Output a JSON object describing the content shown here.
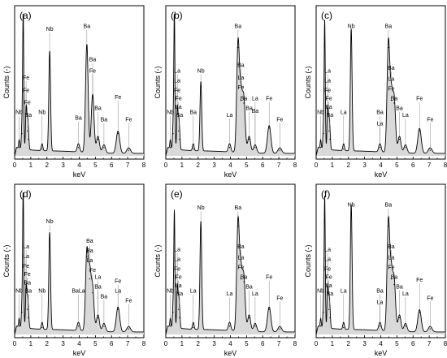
{
  "chart_data": [
    {
      "type": "area",
      "panel_label": "(a)",
      "xlabel": "keV",
      "ylabel": "Counts (-)",
      "xlim": [
        0,
        8
      ],
      "x_ticks": [
        "0",
        "1",
        "2",
        "3",
        "4",
        "5",
        "6",
        "7",
        "8"
      ],
      "peaks": [
        {
          "x": 0.28,
          "y": 0.06
        },
        {
          "x": 0.45,
          "y": 0.16
        },
        {
          "x": 0.53,
          "y": 1.0
        },
        {
          "x": 0.71,
          "y": 0.3
        },
        {
          "x": 0.79,
          "y": 0.18
        },
        {
          "x": 0.85,
          "y": 0.12
        },
        {
          "x": 1.7,
          "y": 0.05
        },
        {
          "x": 2.17,
          "y": 0.72
        },
        {
          "x": 3.95,
          "y": 0.06
        },
        {
          "x": 4.47,
          "y": 0.78
        },
        {
          "x": 4.83,
          "y": 0.42
        },
        {
          "x": 5.16,
          "y": 0.12
        },
        {
          "x": 5.53,
          "y": 0.06
        },
        {
          "x": 6.4,
          "y": 0.16
        },
        {
          "x": 7.06,
          "y": 0.04
        }
      ],
      "labels": [
        {
          "text": "Nb",
          "x": 2.17,
          "level": 0.9
        },
        {
          "text": "Ba",
          "x": 4.47,
          "level": 0.92
        },
        {
          "text": "Fe",
          "x": 0.71,
          "level": 0.55
        },
        {
          "text": "Fe",
          "x": 0.71,
          "level": 0.46
        },
        {
          "text": "Fe",
          "x": 0.79,
          "level": 0.37
        },
        {
          "text": "Ba",
          "x": 0.85,
          "level": 0.28
        },
        {
          "text": "Nb",
          "x": 0.28,
          "level": 0.3
        },
        {
          "text": "Nb",
          "x": 1.7,
          "level": 0.3
        },
        {
          "text": "Ba",
          "x": 3.95,
          "level": 0.26
        },
        {
          "text": "Ba",
          "x": 4.83,
          "level": 0.68
        },
        {
          "text": "Fe",
          "x": 4.83,
          "level": 0.6
        },
        {
          "text": "Ba",
          "x": 5.16,
          "level": 0.33
        },
        {
          "text": "Ba",
          "x": 5.53,
          "level": 0.25
        },
        {
          "text": "Fe",
          "x": 6.4,
          "level": 0.41
        },
        {
          "text": "Fe",
          "x": 7.06,
          "level": 0.25
        }
      ]
    },
    {
      "type": "area",
      "panel_label": "(b)",
      "xlabel": "keV",
      "ylabel": "Counts (-)",
      "xlim": [
        0,
        8
      ],
      "x_ticks": [
        "0",
        "1",
        "2",
        "3",
        "4",
        "5",
        "6",
        "7",
        "8"
      ],
      "peaks": [
        {
          "x": 0.28,
          "y": 0.06
        },
        {
          "x": 0.45,
          "y": 0.16
        },
        {
          "x": 0.53,
          "y": 1.0
        },
        {
          "x": 0.71,
          "y": 0.3
        },
        {
          "x": 0.79,
          "y": 0.18
        },
        {
          "x": 0.85,
          "y": 0.12
        },
        {
          "x": 1.7,
          "y": 0.05
        },
        {
          "x": 2.17,
          "y": 0.5
        },
        {
          "x": 3.95,
          "y": 0.06
        },
        {
          "x": 4.47,
          "y": 0.78
        },
        {
          "x": 4.65,
          "y": 0.4
        },
        {
          "x": 4.83,
          "y": 0.38
        },
        {
          "x": 5.16,
          "y": 0.12
        },
        {
          "x": 5.53,
          "y": 0.06
        },
        {
          "x": 6.4,
          "y": 0.2
        },
        {
          "x": 7.06,
          "y": 0.04
        }
      ],
      "labels": [
        {
          "text": "Ba",
          "x": 4.47,
          "level": 0.92
        },
        {
          "text": "Ba",
          "x": 4.65,
          "level": 0.64
        },
        {
          "text": "Nb",
          "x": 2.17,
          "level": 0.6
        },
        {
          "text": "La",
          "x": 0.71,
          "level": 0.6
        },
        {
          "text": "La",
          "x": 0.71,
          "level": 0.53
        },
        {
          "text": "Fe",
          "x": 0.71,
          "level": 0.46
        },
        {
          "text": "Fe",
          "x": 0.79,
          "level": 0.4
        },
        {
          "text": "La",
          "x": 0.79,
          "level": 0.34
        },
        {
          "text": "Ba",
          "x": 0.85,
          "level": 0.28
        },
        {
          "text": "Nb",
          "x": 0.28,
          "level": 0.3
        },
        {
          "text": "Ba",
          "x": 1.7,
          "level": 0.3
        },
        {
          "text": "La",
          "x": 3.95,
          "level": 0.28
        },
        {
          "text": "La",
          "x": 4.65,
          "level": 0.55
        },
        {
          "text": "Fe",
          "x": 4.65,
          "level": 0.48
        },
        {
          "text": "Ba",
          "x": 4.83,
          "level": 0.4
        },
        {
          "text": "Ba",
          "x": 5.16,
          "level": 0.33
        },
        {
          "text": "La",
          "x": 5.53,
          "level": 0.4
        },
        {
          "text": "Ba",
          "x": 5.53,
          "level": 0.31
        },
        {
          "text": "Fe",
          "x": 6.4,
          "level": 0.4
        },
        {
          "text": "Fe",
          "x": 7.06,
          "level": 0.25
        }
      ]
    },
    {
      "type": "area",
      "panel_label": "(c)",
      "xlabel": "keV",
      "ylabel": "Counts (-)",
      "xlim": [
        0,
        8
      ],
      "x_ticks": [
        "0",
        "1",
        "2",
        "3",
        "4",
        "5",
        "6",
        "7",
        "8"
      ],
      "peaks": [
        {
          "x": 0.28,
          "y": 0.06
        },
        {
          "x": 0.45,
          "y": 0.16
        },
        {
          "x": 0.53,
          "y": 0.92
        },
        {
          "x": 0.71,
          "y": 0.3
        },
        {
          "x": 0.79,
          "y": 0.18
        },
        {
          "x": 0.85,
          "y": 0.12
        },
        {
          "x": 1.7,
          "y": 0.05
        },
        {
          "x": 2.17,
          "y": 0.88
        },
        {
          "x": 3.95,
          "y": 0.06
        },
        {
          "x": 4.47,
          "y": 0.78
        },
        {
          "x": 4.65,
          "y": 0.4
        },
        {
          "x": 4.83,
          "y": 0.38
        },
        {
          "x": 5.16,
          "y": 0.12
        },
        {
          "x": 5.53,
          "y": 0.06
        },
        {
          "x": 6.4,
          "y": 0.18
        },
        {
          "x": 7.06,
          "y": 0.04
        }
      ],
      "labels": [
        {
          "text": "Nb",
          "x": 2.17,
          "level": 0.92
        },
        {
          "text": "Ba",
          "x": 4.47,
          "level": 0.92
        },
        {
          "text": "Ba",
          "x": 4.65,
          "level": 0.62
        },
        {
          "text": "La",
          "x": 0.71,
          "level": 0.6
        },
        {
          "text": "La",
          "x": 0.71,
          "level": 0.53
        },
        {
          "text": "Fe",
          "x": 0.71,
          "level": 0.46
        },
        {
          "text": "Fe",
          "x": 0.79,
          "level": 0.4
        },
        {
          "text": "La",
          "x": 0.79,
          "level": 0.34
        },
        {
          "text": "Ba",
          "x": 0.85,
          "level": 0.28
        },
        {
          "text": "Nb",
          "x": 0.28,
          "level": 0.3
        },
        {
          "text": "La",
          "x": 1.7,
          "level": 0.3
        },
        {
          "text": "Ba",
          "x": 3.95,
          "level": 0.3
        },
        {
          "text": "La",
          "x": 3.95,
          "level": 0.22
        },
        {
          "text": "La",
          "x": 4.65,
          "level": 0.54
        },
        {
          "text": "Fe",
          "x": 4.65,
          "level": 0.47
        },
        {
          "text": "Ba",
          "x": 4.83,
          "level": 0.4
        },
        {
          "text": "Ba",
          "x": 5.16,
          "level": 0.33
        },
        {
          "text": "La",
          "x": 5.53,
          "level": 0.28
        },
        {
          "text": "Fe",
          "x": 6.4,
          "level": 0.4
        },
        {
          "text": "Fe",
          "x": 7.06,
          "level": 0.25
        }
      ]
    },
    {
      "type": "area",
      "panel_label": "(d)",
      "xlabel": "keV",
      "ylabel": "Counts (-)",
      "xlim": [
        0,
        8
      ],
      "x_ticks": [
        "0",
        "1",
        "2",
        "3",
        "4",
        "5",
        "6",
        "7",
        "8"
      ],
      "peaks": [
        {
          "x": 0.28,
          "y": 0.06
        },
        {
          "x": 0.45,
          "y": 0.16
        },
        {
          "x": 0.53,
          "y": 1.0
        },
        {
          "x": 0.71,
          "y": 0.3
        },
        {
          "x": 0.79,
          "y": 0.18
        },
        {
          "x": 0.85,
          "y": 0.12
        },
        {
          "x": 1.7,
          "y": 0.05
        },
        {
          "x": 2.17,
          "y": 0.7
        },
        {
          "x": 3.95,
          "y": 0.06
        },
        {
          "x": 4.47,
          "y": 0.56
        },
        {
          "x": 4.65,
          "y": 0.4
        },
        {
          "x": 4.83,
          "y": 0.3
        },
        {
          "x": 5.16,
          "y": 0.12
        },
        {
          "x": 5.53,
          "y": 0.06
        },
        {
          "x": 6.4,
          "y": 0.18
        },
        {
          "x": 7.06,
          "y": 0.04
        }
      ],
      "labels": [
        {
          "text": "Nb",
          "x": 2.17,
          "level": 0.8
        },
        {
          "text": "La",
          "x": 0.71,
          "level": 0.62
        },
        {
          "text": "La",
          "x": 0.71,
          "level": 0.55
        },
        {
          "text": "Fe",
          "x": 0.71,
          "level": 0.48
        },
        {
          "text": "Fe",
          "x": 0.79,
          "level": 0.42
        },
        {
          "text": "Ba",
          "x": 0.79,
          "level": 0.36
        },
        {
          "text": "Ba",
          "x": 0.85,
          "level": 0.3
        },
        {
          "text": "Nb",
          "x": 0.28,
          "level": 0.3
        },
        {
          "text": "Nb",
          "x": 1.7,
          "level": 0.3
        },
        {
          "text": "BaLa",
          "x": 3.95,
          "level": 0.3
        },
        {
          "text": "Ba",
          "x": 4.65,
          "level": 0.66
        },
        {
          "text": "Ba",
          "x": 4.65,
          "level": 0.59
        },
        {
          "text": "La",
          "x": 4.65,
          "level": 0.52
        },
        {
          "text": "Fe",
          "x": 4.83,
          "level": 0.45
        },
        {
          "text": "La",
          "x": 5.16,
          "level": 0.4
        },
        {
          "text": "Ba",
          "x": 5.16,
          "level": 0.33
        },
        {
          "text": "Ba",
          "x": 5.53,
          "level": 0.26
        },
        {
          "text": "Fe",
          "x": 6.4,
          "level": 0.37
        },
        {
          "text": "La",
          "x": 6.4,
          "level": 0.3
        },
        {
          "text": "Fe",
          "x": 7.06,
          "level": 0.23
        }
      ]
    },
    {
      "type": "area",
      "panel_label": "(e)",
      "xlabel": "keV",
      "ylabel": "Counts (-)",
      "xlim": [
        0,
        8
      ],
      "x_ticks": [
        "0",
        "1",
        "2",
        "3",
        "4",
        "5",
        "6",
        "7",
        "8"
      ],
      "peaks": [
        {
          "x": 0.28,
          "y": 0.06
        },
        {
          "x": 0.45,
          "y": 0.16
        },
        {
          "x": 0.53,
          "y": 0.84
        },
        {
          "x": 0.71,
          "y": 0.3
        },
        {
          "x": 0.79,
          "y": 0.18
        },
        {
          "x": 0.85,
          "y": 0.12
        },
        {
          "x": 1.7,
          "y": 0.05
        },
        {
          "x": 2.17,
          "y": 0.78
        },
        {
          "x": 3.95,
          "y": 0.06
        },
        {
          "x": 4.47,
          "y": 0.78
        },
        {
          "x": 4.65,
          "y": 0.4
        },
        {
          "x": 4.83,
          "y": 0.38
        },
        {
          "x": 5.16,
          "y": 0.12
        },
        {
          "x": 5.53,
          "y": 0.06
        },
        {
          "x": 6.4,
          "y": 0.18
        },
        {
          "x": 7.06,
          "y": 0.04
        }
      ],
      "labels": [
        {
          "text": "Nb",
          "x": 2.17,
          "level": 0.9
        },
        {
          "text": "Ba",
          "x": 4.47,
          "level": 0.9
        },
        {
          "text": "Ba",
          "x": 4.65,
          "level": 0.62
        },
        {
          "text": "La",
          "x": 0.71,
          "level": 0.6
        },
        {
          "text": "La",
          "x": 0.71,
          "level": 0.53
        },
        {
          "text": "Fe",
          "x": 0.71,
          "level": 0.46
        },
        {
          "text": "Fe",
          "x": 0.79,
          "level": 0.4
        },
        {
          "text": "La",
          "x": 0.79,
          "level": 0.34
        },
        {
          "text": "Ba",
          "x": 0.85,
          "level": 0.28
        },
        {
          "text": "Nb",
          "x": 0.28,
          "level": 0.3
        },
        {
          "text": "La",
          "x": 1.7,
          "level": 0.3
        },
        {
          "text": "La",
          "x": 3.95,
          "level": 0.28
        },
        {
          "text": "La",
          "x": 4.65,
          "level": 0.54
        },
        {
          "text": "Fe",
          "x": 4.65,
          "level": 0.47
        },
        {
          "text": "Ba",
          "x": 4.83,
          "level": 0.4
        },
        {
          "text": "Ba",
          "x": 5.16,
          "level": 0.33
        },
        {
          "text": "La",
          "x": 5.53,
          "level": 0.28
        },
        {
          "text": "Fe",
          "x": 6.4,
          "level": 0.4
        },
        {
          "text": "Fe",
          "x": 7.06,
          "level": 0.25
        }
      ]
    },
    {
      "type": "area",
      "panel_label": "(f)",
      "xlabel": "keV",
      "ylabel": "Counts (-)",
      "xlim": [
        0,
        8
      ],
      "x_ticks": [
        "0",
        "1",
        "2",
        "3",
        "4",
        "5",
        "6",
        "7",
        "8"
      ],
      "peaks": [
        {
          "x": 0.28,
          "y": 0.06
        },
        {
          "x": 0.45,
          "y": 0.16
        },
        {
          "x": 0.53,
          "y": 0.94
        },
        {
          "x": 0.71,
          "y": 0.3
        },
        {
          "x": 0.79,
          "y": 0.18
        },
        {
          "x": 0.85,
          "y": 0.12
        },
        {
          "x": 1.7,
          "y": 0.05
        },
        {
          "x": 2.17,
          "y": 0.9
        },
        {
          "x": 3.95,
          "y": 0.06
        },
        {
          "x": 4.47,
          "y": 0.78
        },
        {
          "x": 4.65,
          "y": 0.4
        },
        {
          "x": 4.83,
          "y": 0.36
        },
        {
          "x": 5.16,
          "y": 0.12
        },
        {
          "x": 5.53,
          "y": 0.06
        },
        {
          "x": 6.4,
          "y": 0.16
        },
        {
          "x": 7.06,
          "y": 0.04
        }
      ],
      "labels": [
        {
          "text": "Nb",
          "x": 2.17,
          "level": 0.92
        },
        {
          "text": "Ba",
          "x": 4.47,
          "level": 0.92
        },
        {
          "text": "Ba",
          "x": 4.65,
          "level": 0.62
        },
        {
          "text": "La",
          "x": 0.71,
          "level": 0.6
        },
        {
          "text": "La",
          "x": 0.71,
          "level": 0.53
        },
        {
          "text": "Fe",
          "x": 0.71,
          "level": 0.46
        },
        {
          "text": "Fe",
          "x": 0.79,
          "level": 0.4
        },
        {
          "text": "La",
          "x": 0.79,
          "level": 0.34
        },
        {
          "text": "Ba",
          "x": 0.85,
          "level": 0.28
        },
        {
          "text": "Nb",
          "x": 0.28,
          "level": 0.3
        },
        {
          "text": "La",
          "x": 1.7,
          "level": 0.3
        },
        {
          "text": "Ba",
          "x": 3.95,
          "level": 0.3
        },
        {
          "text": "La",
          "x": 3.95,
          "level": 0.22
        },
        {
          "text": "La",
          "x": 4.65,
          "level": 0.54
        },
        {
          "text": "Fe",
          "x": 4.65,
          "level": 0.47
        },
        {
          "text": "Ba",
          "x": 4.83,
          "level": 0.4
        },
        {
          "text": "Ba",
          "x": 5.16,
          "level": 0.33
        },
        {
          "text": "La",
          "x": 5.53,
          "level": 0.28
        },
        {
          "text": "Fe",
          "x": 6.4,
          "level": 0.38
        },
        {
          "text": "Fe",
          "x": 7.06,
          "level": 0.25
        }
      ]
    }
  ]
}
